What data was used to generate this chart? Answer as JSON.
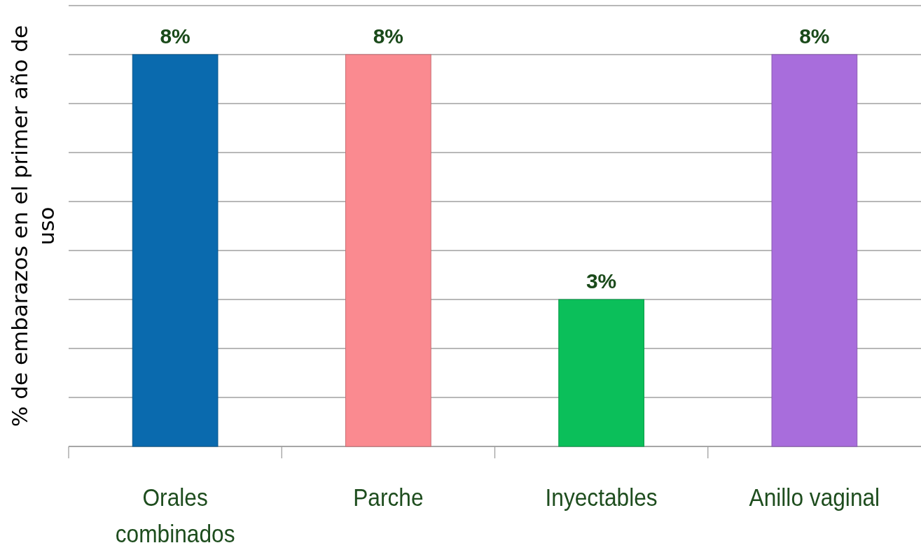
{
  "chart_data": {
    "type": "bar",
    "ylabel": "% de embarazos en el primer año de uso",
    "categories": [
      "Orales combinados",
      "Parche",
      "Inyectables",
      "Anillo vaginal"
    ],
    "values": [
      8,
      8,
      3,
      8
    ],
    "colors": [
      "#0a6aae",
      "#fa8a90",
      "#0bbf5a",
      "#a86ddc"
    ],
    "value_labels": [
      "8%",
      "8%",
      "3%",
      "8%"
    ],
    "ylim": [
      0,
      9
    ],
    "yticks": [
      {
        "value": 0,
        "label": null
      },
      {
        "value": 1,
        "label": null
      },
      {
        "value": 2,
        "label": null
      },
      {
        "value": 3,
        "label": null
      },
      {
        "value": 4,
        "label": null
      },
      {
        "value": 5,
        "label": null
      },
      {
        "value": 6,
        "label": null
      },
      {
        "value": 7,
        "label": null
      },
      {
        "value": 8,
        "label": null
      },
      {
        "value": 9,
        "label": null
      }
    ],
    "grid": "y",
    "tick_labels": "x"
  }
}
